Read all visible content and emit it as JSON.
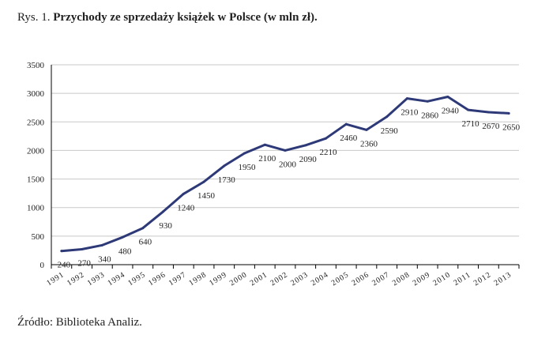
{
  "caption": {
    "prefix": "Rys. 1.",
    "title": "Przychody ze sprzedaży książek w Polsce (w mln zł)."
  },
  "source": "Źródło: Biblioteka Analiz.",
  "colors": {
    "line": "#2e3a78",
    "grid": "#c8c8c8",
    "axis": "#000000"
  },
  "chart_data": {
    "type": "line",
    "title": "",
    "xlabel": "",
    "ylabel": "",
    "ylim": [
      0,
      3500
    ],
    "yticks": [
      0,
      500,
      1000,
      1500,
      2000,
      2500,
      3000,
      3500
    ],
    "grid": true,
    "legend": "none",
    "categories": [
      "1991",
      "1992",
      "1993",
      "1994",
      "1995",
      "1996",
      "1997",
      "1998",
      "1999",
      "2000",
      "2001",
      "2002",
      "2003",
      "2004",
      "2005",
      "2006",
      "2007",
      "2008",
      "2009",
      "2010",
      "2011",
      "2012",
      "2013"
    ],
    "series": [
      {
        "values": [
          240,
          270,
          340,
          480,
          640,
          930,
          1240,
          1450,
          1730,
          1950,
          2100,
          2000,
          2090,
          2210,
          2460,
          2360,
          2590,
          2910,
          2860,
          2940,
          2710,
          2670,
          2650
        ]
      }
    ]
  }
}
